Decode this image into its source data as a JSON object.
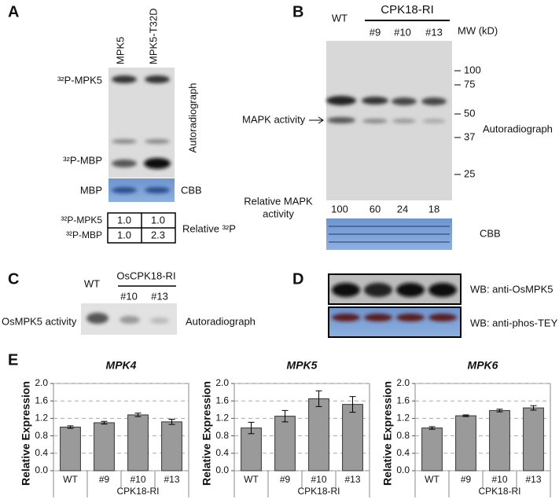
{
  "panel_a": {
    "label": "A",
    "lanes": [
      "MPK5",
      "MPK5-T32D"
    ],
    "band_labels": [
      "³²P-MPK5",
      "³²P-MBP"
    ],
    "method": "Autoradiograph",
    "cbb_band": "MBP",
    "cbb": "CBB",
    "table": {
      "row_labels": [
        "³²P-MPK5",
        "³²P-MBP"
      ],
      "rows": [
        [
          "1.0",
          "1.0"
        ],
        [
          "1.0",
          "2.3"
        ]
      ],
      "caption": "Relative ³²P"
    }
  },
  "panel_b": {
    "label": "B",
    "control": "WT",
    "group": "CPK18-RI",
    "lines": [
      "#9",
      "#10",
      "#13"
    ],
    "mw_title": "MW (kD)",
    "mw_markers": [
      100,
      75,
      50,
      37,
      25
    ],
    "arrow_label": "MAPK activity",
    "method": "Autoradiograph",
    "activity_label": [
      "Relative MAPK",
      "activity"
    ],
    "activity_values": [
      100,
      60,
      24,
      18
    ],
    "cbb": "CBB"
  },
  "panel_c": {
    "label": "C",
    "control": "WT",
    "group": "OsCPK18-RI",
    "lines": [
      "#10",
      "#13"
    ],
    "row_label": "OsMPK5 activity",
    "method": "Autoradiograph"
  },
  "panel_d": {
    "label": "D",
    "rows": [
      "WB: anti-OsMPK5",
      "WB: anti-phos-TEY"
    ]
  },
  "panel_e": {
    "label": "E"
  },
  "chart_data": [
    {
      "type": "bar",
      "title": "MPK4",
      "y_label": "Relative Expression",
      "categories": [
        "WT",
        "#9",
        "#10",
        "#13"
      ],
      "category_group": "CPK18-RI",
      "values": [
        1.0,
        1.1,
        1.28,
        1.12
      ],
      "errors": [
        0.03,
        0.03,
        0.04,
        0.06
      ],
      "color": "#9a9a9a",
      "ylim": [
        0,
        2.0
      ],
      "yticks": [
        {
          "value": 0,
          "label": "0.0"
        },
        {
          "value": 0.4,
          "label": "0.4"
        },
        {
          "value": 0.8,
          "label": "0.8"
        },
        {
          "value": 1.2,
          "label": "1.2"
        },
        {
          "value": 1.6,
          "label": "1.6"
        },
        {
          "value": 2.0,
          "label": "2.0"
        }
      ],
      "grid": true
    },
    {
      "type": "bar",
      "title": "MPK5",
      "y_label": "Relative Expression",
      "categories": [
        "WT",
        "#9",
        "#10",
        "#13"
      ],
      "category_group": "CPK18-RI",
      "values": [
        0.98,
        1.25,
        1.65,
        1.52
      ],
      "errors": [
        0.13,
        0.13,
        0.18,
        0.18
      ],
      "color": "#9a9a9a",
      "ylim": [
        0,
        2.0
      ],
      "yticks": [
        {
          "value": 0,
          "label": "0.0"
        },
        {
          "value": 0.4,
          "label": "0.4"
        },
        {
          "value": 0.8,
          "label": "0.8"
        },
        {
          "value": 1.2,
          "label": "1.2"
        },
        {
          "value": 1.6,
          "label": "1.6"
        },
        {
          "value": 2.0,
          "label": "2.0"
        }
      ],
      "grid": true
    },
    {
      "type": "bar",
      "title": "MPK6",
      "y_label": "Relative Expression",
      "categories": [
        "WT",
        "#9",
        "#10",
        "#13"
      ],
      "category_group": "CPK18-RI",
      "values": [
        0.98,
        1.26,
        1.38,
        1.44
      ],
      "errors": [
        0.03,
        0.02,
        0.03,
        0.05
      ],
      "color": "#9a9a9a",
      "ylim": [
        0,
        2.0
      ],
      "yticks": [
        {
          "value": 0,
          "label": "0.0"
        },
        {
          "value": 0.4,
          "label": "0.4"
        },
        {
          "value": 0.8,
          "label": "0.8"
        },
        {
          "value": 1.2,
          "label": "1.2"
        },
        {
          "value": 1.6,
          "label": "1.6"
        },
        {
          "value": 2.0,
          "label": "2.0"
        }
      ],
      "grid": true
    }
  ]
}
